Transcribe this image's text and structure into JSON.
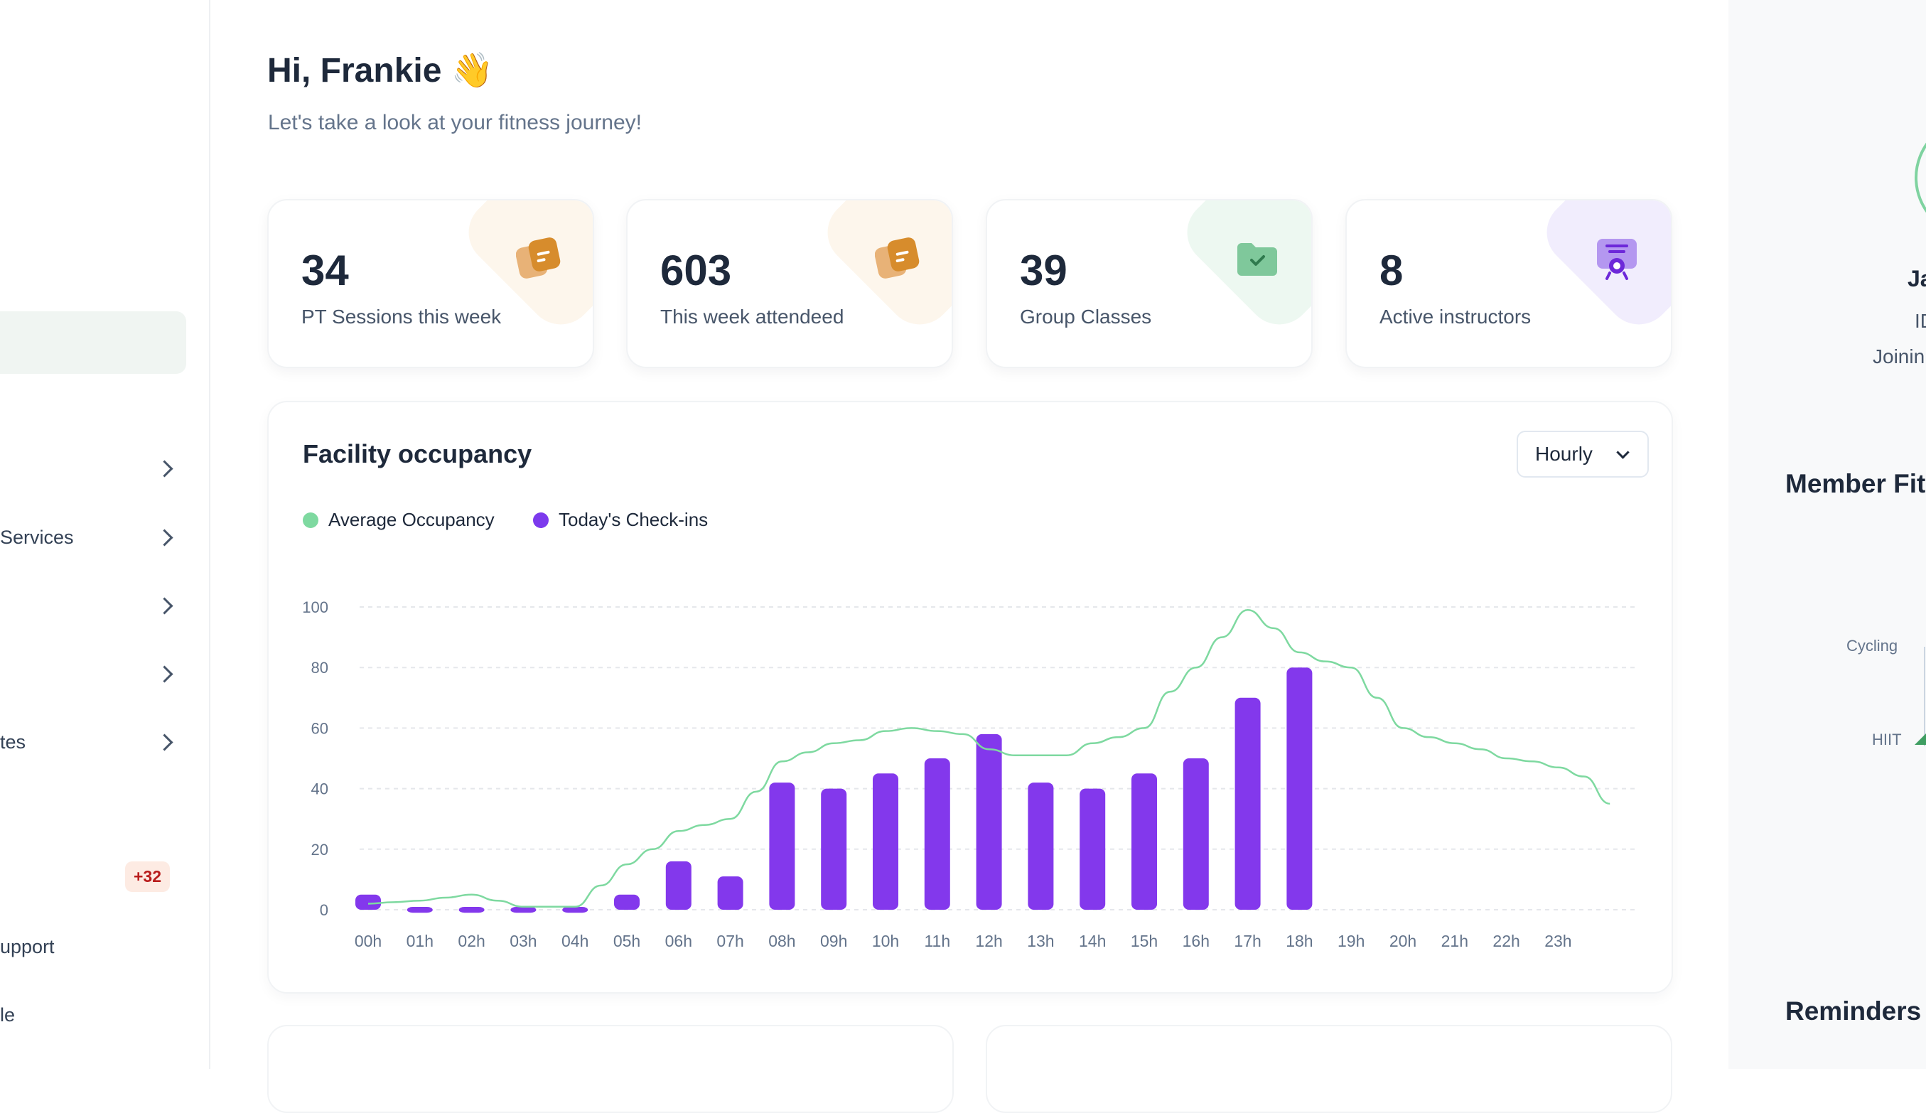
{
  "sidebar": {
    "items": [
      {
        "label": ""
      },
      {
        "label": "Services"
      },
      {
        "label": ""
      },
      {
        "label": ""
      },
      {
        "label": "tes"
      },
      {
        "label": "upport"
      },
      {
        "label": "le"
      }
    ],
    "badge": "+32"
  },
  "header": {
    "greeting": "Hi, Frankie 👋",
    "subtitle": "Let's take a look at your fitness journey!"
  },
  "stats": [
    {
      "value": "34",
      "label": "PT Sessions this week",
      "accent": "#fdf6ec",
      "icon": "document-icon"
    },
    {
      "value": "603",
      "label": "This week attendeed",
      "accent": "#fdf6ec",
      "icon": "document-icon"
    },
    {
      "value": "39",
      "label": "Group Classes",
      "accent": "#edf8f1",
      "icon": "folder-check-icon"
    },
    {
      "value": "8",
      "label": "Active instructors",
      "accent": "#f1edfd",
      "icon": "certificate-icon"
    }
  ],
  "occupancy": {
    "title": "Facility occupancy",
    "dropdown": "Hourly",
    "legend": [
      {
        "label": "Average Occupancy",
        "color": "#7ed9a0"
      },
      {
        "label": "Today's Check-ins",
        "color": "#7c3aed"
      }
    ]
  },
  "chart_data": {
    "type": "bar",
    "categories": [
      "00h",
      "01h",
      "02h",
      "03h",
      "04h",
      "05h",
      "06h",
      "07h",
      "08h",
      "09h",
      "10h",
      "11h",
      "12h",
      "13h",
      "14h",
      "15h",
      "16h",
      "17h",
      "18h",
      "19h",
      "20h",
      "21h",
      "22h",
      "23h"
    ],
    "ylim": [
      0,
      100
    ],
    "yticks": [
      0,
      20,
      40,
      60,
      80,
      100
    ],
    "series": [
      {
        "name": "Today's Check-ins",
        "type": "bar",
        "color": "#8338ec",
        "values": [
          5,
          -1,
          -1,
          -1,
          -1,
          5,
          16,
          11,
          42,
          40,
          45,
          50,
          58,
          42,
          40,
          45,
          50,
          70,
          80,
          null,
          null,
          null,
          null,
          null
        ]
      },
      {
        "name": "Average Occupancy",
        "type": "line",
        "color": "#7ed9a0",
        "x": [
          0,
          0.5,
          1,
          1.5,
          2,
          2.5,
          3,
          3.5,
          4,
          4.5,
          5,
          5.5,
          6,
          6.5,
          7,
          7.5,
          8,
          8.5,
          9,
          9.5,
          10,
          10.5,
          11,
          11.5,
          12,
          12.5,
          13,
          13.5,
          14,
          14.5,
          15,
          15.5,
          16,
          16.5,
          17,
          17.5,
          18,
          18.5,
          19,
          19.5,
          20,
          20.5,
          21,
          21.5,
          22,
          22.5,
          23,
          23.5,
          24
        ],
        "values": [
          2,
          2.5,
          3,
          4,
          5,
          3,
          1,
          1,
          1,
          8,
          15,
          20,
          26,
          28,
          30,
          39,
          49,
          52,
          55,
          56,
          59,
          60,
          59,
          58,
          53,
          51,
          51,
          51,
          55,
          57,
          60,
          72,
          80,
          90,
          99,
          93,
          85,
          82,
          80,
          70,
          60,
          57,
          55,
          53,
          50,
          49,
          47,
          44,
          35
        ]
      }
    ],
    "grid": true
  },
  "right_panel": {
    "name_fragment": "Ja",
    "id_fragment": "ID",
    "joining_fragment": "Joinin",
    "section1": "Member Fit",
    "axis_labels": [
      "Cycling",
      "HIIT"
    ],
    "section2": "Reminders"
  }
}
